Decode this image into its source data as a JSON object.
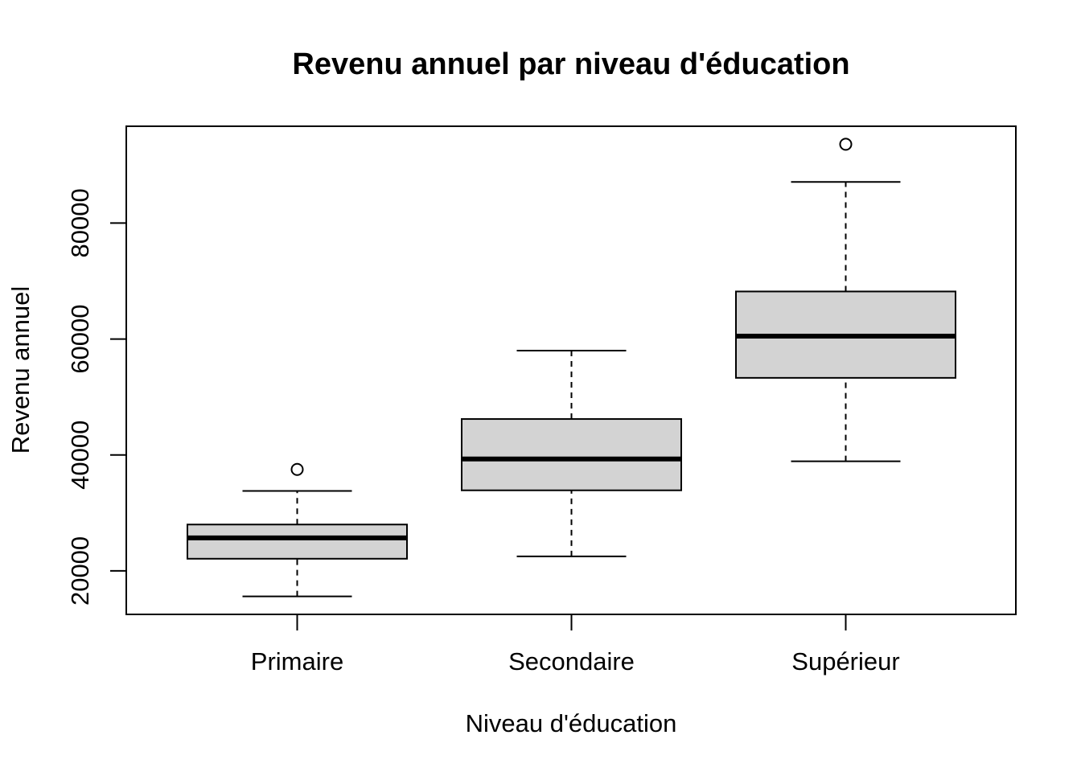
{
  "chart_data": {
    "type": "boxplot",
    "title": "Revenu annuel par niveau d'éducation",
    "xlabel": "Niveau d'éducation",
    "ylabel": "Revenu annuel",
    "ylim": [
      12500,
      96700
    ],
    "yticks": [
      20000,
      40000,
      60000,
      80000
    ],
    "ytick_labels": [
      "20000",
      "40000",
      "60000",
      "80000"
    ],
    "categories": [
      "Primaire",
      "Secondaire",
      "Supérieur"
    ],
    "box_color": "#d3d3d3",
    "boxes": [
      {
        "category": "Primaire",
        "whisker_low": 15600,
        "q1": 22100,
        "median": 25700,
        "q3": 28000,
        "whisker_high": 33800,
        "outliers": [
          37500
        ]
      },
      {
        "category": "Secondaire",
        "whisker_low": 22500,
        "q1": 33900,
        "median": 39300,
        "q3": 46200,
        "whisker_high": 58000,
        "outliers": []
      },
      {
        "category": "Supérieur",
        "whisker_low": 38900,
        "q1": 53300,
        "median": 60500,
        "q3": 68200,
        "whisker_high": 87100,
        "outliers": [
          93600
        ]
      }
    ]
  }
}
